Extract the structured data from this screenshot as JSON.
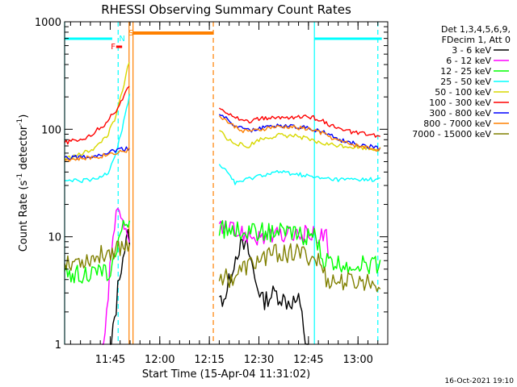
{
  "chart_data": {
    "type": "line",
    "title": "RHESSI Observing Summary Count Rates",
    "xlabel": "Start Time (15-Apr-04 11:31:02)",
    "ylabel_main": "Count Rate (s",
    "ylabel_sup1": "-1",
    "ylabel_mid": " detector",
    "ylabel_sup2": "-1",
    "ylabel_end": ")",
    "y_scale": "log",
    "ylim": [
      1,
      1000
    ],
    "xlim_minutes": [
      11.52,
      13.15
    ],
    "y_ticks": [
      {
        "value": 1,
        "label": "1"
      },
      {
        "value": 10,
        "label": "10"
      },
      {
        "value": 100,
        "label": "100"
      },
      {
        "value": 1000,
        "label": "1000"
      }
    ],
    "x_ticks": [
      {
        "value": 11.75,
        "label": "11:45"
      },
      {
        "value": 12.0,
        "label": "12:00"
      },
      {
        "value": 12.25,
        "label": "12:15"
      },
      {
        "value": 12.5,
        "label": "12:30"
      },
      {
        "value": 12.75,
        "label": "12:45"
      },
      {
        "value": 13.0,
        "label": "13:00"
      }
    ],
    "legend_header": [
      "Det 1,3,4,5,6,9,",
      "FDecim 1, Att 0"
    ],
    "series": [
      {
        "name": "3 - 6 keV",
        "color": "#000000",
        "x": [
          11.52,
          11.6,
          11.68,
          11.74,
          11.78,
          11.84,
          11.855,
          12.3,
          12.34,
          12.4,
          12.44,
          12.48,
          12.52,
          12.58,
          12.64,
          12.7,
          12.76,
          12.82
        ],
        "y": [
          0,
          0,
          0,
          0,
          2.2,
          10,
          10,
          2.5,
          3,
          8,
          8,
          4,
          2.5,
          3,
          2.5,
          2.5,
          0,
          0
        ]
      },
      {
        "name": "6 - 12 keV",
        "color": "#ff00ff",
        "x": [
          11.52,
          11.6,
          11.7,
          11.74,
          11.78,
          11.82,
          11.855,
          12.3,
          12.38,
          12.44,
          12.5,
          12.6,
          12.7,
          12.8,
          12.84,
          12.86,
          13.1
        ],
        "y": [
          0,
          0,
          0,
          2.5,
          16,
          12,
          10,
          12,
          11,
          10.5,
          10,
          10,
          10.5,
          10.5,
          10,
          1,
          1
        ]
      },
      {
        "name": "12 - 25 keV",
        "color": "#00ff00",
        "x": [
          11.52,
          11.6,
          11.7,
          11.76,
          11.8,
          11.84,
          11.855,
          12.3,
          12.4,
          12.5,
          12.6,
          12.7,
          12.78,
          12.82,
          12.9,
          13.0,
          13.12
        ],
        "y": [
          4.5,
          4.5,
          4.5,
          5,
          10,
          14,
          14,
          12,
          11.5,
          11,
          11,
          10.5,
          10,
          6,
          5.5,
          5.5,
          5.5
        ]
      },
      {
        "name": "25 - 50 keV",
        "color": "#00ffff",
        "x": [
          11.52,
          11.6,
          11.68,
          11.74,
          11.78,
          11.81,
          11.84,
          11.855,
          12.3,
          12.34,
          12.38,
          12.42,
          12.5,
          12.6,
          12.7,
          12.8,
          12.9,
          13.0,
          13.12
        ],
        "y": [
          33,
          33,
          34,
          40,
          60,
          100,
          170,
          270,
          47,
          40,
          32,
          33,
          37,
          40,
          38,
          35,
          34,
          34,
          34
        ]
      },
      {
        "name": "50 - 100 keV",
        "color": "#d8d800",
        "x": [
          11.52,
          11.6,
          11.68,
          11.74,
          11.78,
          11.82,
          11.855,
          12.3,
          12.34,
          12.38,
          12.44,
          12.5,
          12.6,
          12.7,
          12.8,
          12.86,
          13.0,
          13.12
        ],
        "y": [
          53,
          58,
          68,
          90,
          130,
          250,
          500,
          100,
          80,
          75,
          68,
          80,
          88,
          86,
          75,
          72,
          68,
          65
        ]
      },
      {
        "name": "100 - 300 keV",
        "color": "#ff0000",
        "x": [
          11.52,
          11.6,
          11.66,
          11.72,
          11.78,
          11.82,
          11.855,
          12.3,
          12.34,
          12.4,
          12.46,
          12.5,
          12.6,
          12.7,
          12.76,
          12.8,
          12.84,
          12.9,
          13.0,
          13.12
        ],
        "y": [
          75,
          80,
          90,
          110,
          150,
          200,
          270,
          160,
          145,
          125,
          118,
          125,
          128,
          130,
          130,
          125,
          115,
          100,
          92,
          85
        ]
      },
      {
        "name": "300 - 800 keV",
        "color": "#0000ff",
        "x": [
          11.52,
          11.6,
          11.7,
          11.76,
          11.8,
          11.855,
          12.3,
          12.36,
          12.42,
          12.48,
          12.56,
          12.66,
          12.76,
          12.82,
          12.9,
          13.0,
          13.12
        ],
        "y": [
          55,
          55,
          58,
          62,
          65,
          66,
          140,
          115,
          100,
          98,
          108,
          108,
          102,
          95,
          80,
          72,
          66
        ]
      },
      {
        "name": "800 - 7000 keV",
        "color": "#ff8000",
        "x": [
          11.52,
          11.6,
          11.7,
          11.76,
          11.8,
          11.855,
          12.3,
          12.36,
          12.42,
          12.48,
          12.56,
          12.66,
          12.76,
          12.82,
          12.9,
          13.0,
          13.12
        ],
        "y": [
          52,
          53,
          56,
          60,
          62,
          64,
          135,
          110,
          97,
          96,
          104,
          105,
          100,
          92,
          78,
          70,
          64
        ]
      },
      {
        "name": "7000 - 15000 keV",
        "color": "#808000",
        "x": [
          11.52,
          11.6,
          11.68,
          11.72,
          11.76,
          11.8,
          11.84,
          11.855,
          12.3,
          12.36,
          12.42,
          12.5,
          12.56,
          12.62,
          12.7,
          12.76,
          12.8,
          12.84,
          12.9,
          13.0,
          13.12
        ],
        "y": [
          6,
          6,
          6.5,
          7,
          7.5,
          8,
          8.5,
          9,
          4.5,
          4,
          5,
          6,
          7,
          7,
          7,
          6.5,
          6,
          4,
          3.8,
          3.8,
          3.8
        ]
      }
    ],
    "annotations": [
      {
        "label": "F",
        "color": "#ff0000"
      },
      {
        "label": "N",
        "color": "#00ffff"
      },
      {
        "label": "S",
        "color": "#ff8000"
      }
    ]
  },
  "footer_timestamp": "16-Oct-2021 19:10"
}
